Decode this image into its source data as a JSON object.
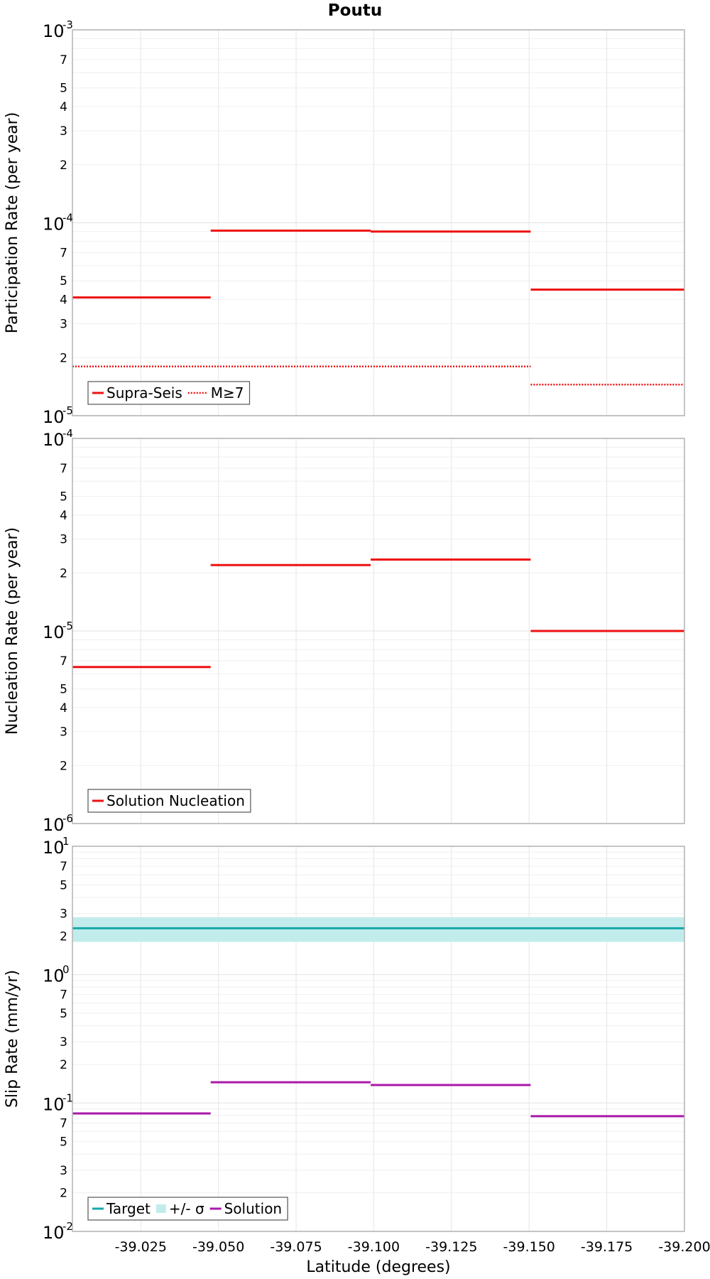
{
  "title": "Poutu",
  "xlabel": "Latitude (degrees)",
  "colors": {
    "solution_red": "#ee1111",
    "target": "#16a8a8",
    "sigma_band": "#c2ecec",
    "solution_purple": "#aa18aa",
    "grid": "#e6e6e6",
    "frame": "#b3b3b3"
  },
  "chart_data": [
    {
      "type": "line",
      "title": "Poutu",
      "ylabel": "Participation Rate (per year)",
      "xlabel": "",
      "yscale": "log",
      "ylim": [
        1e-05,
        0.001
      ],
      "xlim": [
        -39.003,
        -39.2
      ],
      "grid": true,
      "legend_position": "bottom-left",
      "x_ticks": [
        "-39.025",
        "-39.050",
        "-39.075",
        "-39.100",
        "-39.125",
        "-39.150",
        "-39.175",
        "-39.200"
      ],
      "y_ticks": {
        "decades": [
          {
            "base": "10",
            "exp": "-5"
          },
          {
            "base": "10",
            "exp": "-4"
          },
          {
            "base": "10",
            "exp": "-3"
          }
        ],
        "minor": [
          "2",
          "3",
          "4",
          "5",
          "7",
          "2",
          "3",
          "4",
          "5",
          "7"
        ]
      },
      "series": [
        {
          "name": "Supra-Seis",
          "style": "solid",
          "segments": [
            {
              "x": [
                -39.003,
                -39.0475
              ],
              "y": 4.1e-05
            },
            {
              "x": [
                -39.0475,
                -39.099
              ],
              "y": 9.1e-05
            },
            {
              "x": [
                -39.099,
                -39.1505
              ],
              "y": 9e-05
            },
            {
              "x": [
                -39.1505,
                -39.2
              ],
              "y": 4.5e-05
            }
          ]
        },
        {
          "name": "M≥7",
          "style": "dotted",
          "segments": [
            {
              "x": [
                -39.003,
                -39.1505
              ],
              "y": 1.8e-05
            },
            {
              "x": [
                -39.1505,
                -39.2
              ],
              "y": 1.45e-05
            }
          ]
        }
      ]
    },
    {
      "type": "line",
      "title": "",
      "ylabel": "Nucleation Rate (per year)",
      "xlabel": "",
      "yscale": "log",
      "ylim": [
        1e-06,
        0.0001
      ],
      "xlim": [
        -39.003,
        -39.2
      ],
      "grid": true,
      "legend_position": "bottom-left",
      "x_ticks": [
        "-39.025",
        "-39.050",
        "-39.075",
        "-39.100",
        "-39.125",
        "-39.150",
        "-39.175",
        "-39.200"
      ],
      "y_ticks": {
        "decades": [
          {
            "base": "10",
            "exp": "-6"
          },
          {
            "base": "10",
            "exp": "-5"
          },
          {
            "base": "10",
            "exp": "-4"
          }
        ],
        "minor": [
          "2",
          "3",
          "4",
          "5",
          "7",
          "2",
          "3",
          "4",
          "5",
          "7"
        ]
      },
      "series": [
        {
          "name": "Solution Nucleation",
          "style": "solid",
          "segments": [
            {
              "x": [
                -39.003,
                -39.0475
              ],
              "y": 6.5e-06
            },
            {
              "x": [
                -39.0475,
                -39.099
              ],
              "y": 2.2e-05
            },
            {
              "x": [
                -39.099,
                -39.1505
              ],
              "y": 2.35e-05
            },
            {
              "x": [
                -39.1505,
                -39.2
              ],
              "y": 1e-05
            }
          ]
        }
      ]
    },
    {
      "type": "line",
      "title": "",
      "ylabel": "Slip Rate (mm/yr)",
      "xlabel": "Latitude (degrees)",
      "yscale": "log",
      "ylim": [
        0.01,
        10
      ],
      "xlim": [
        -39.003,
        -39.2
      ],
      "grid": true,
      "legend_position": "bottom-left",
      "x_ticks": [
        "-39.025",
        "-39.050",
        "-39.075",
        "-39.100",
        "-39.125",
        "-39.150",
        "-39.175",
        "-39.200"
      ],
      "y_ticks": {
        "decades": [
          {
            "base": "10",
            "exp": "-2"
          },
          {
            "base": "10",
            "exp": "-1"
          },
          {
            "base": "10",
            "exp": "0"
          },
          {
            "base": "10",
            "exp": "1"
          }
        ],
        "minor": [
          "2",
          "3",
          "5",
          "7",
          "2",
          "3",
          "5",
          "7",
          "2",
          "3",
          "5",
          "7"
        ]
      },
      "series": [
        {
          "name": "Target",
          "style": "solid",
          "segments": [
            {
              "x": [
                -39.003,
                -39.2
              ],
              "y": 2.3
            }
          ]
        },
        {
          "name": "+/- σ",
          "style": "band",
          "band": {
            "x": [
              -39.003,
              -39.2
            ],
            "y_low": 1.8,
            "y_high": 2.8
          }
        },
        {
          "name": "Solution",
          "style": "solid",
          "segments": [
            {
              "x": [
                -39.003,
                -39.0475
              ],
              "y": 0.083
            },
            {
              "x": [
                -39.0475,
                -39.099
              ],
              "y": 0.145
            },
            {
              "x": [
                -39.099,
                -39.1505
              ],
              "y": 0.138
            },
            {
              "x": [
                -39.1505,
                -39.2
              ],
              "y": 0.079
            }
          ]
        }
      ]
    }
  ]
}
